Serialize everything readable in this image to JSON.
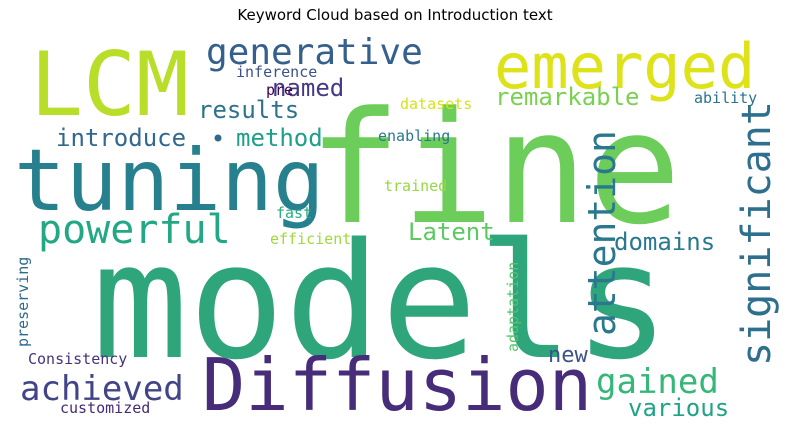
{
  "title": "Keyword Cloud based on Introduction text",
  "chart_data": {
    "type": "wordcloud",
    "title": "Keyword Cloud based on Introduction text",
    "words": [
      {
        "text": "models",
        "color": "#2ea57b",
        "rotate": false
      },
      {
        "text": "fine",
        "color": "#6ccd5a",
        "rotate": false
      },
      {
        "text": "tuning",
        "color": "#27808e",
        "rotate": false
      },
      {
        "text": "LCM",
        "color": "#b8de29",
        "rotate": false
      },
      {
        "text": "Diffusion",
        "color": "#472c7a",
        "rotate": false
      },
      {
        "text": "emerged",
        "color": "#dde318",
        "rotate": false
      },
      {
        "text": "significant",
        "color": "#2e6f8e",
        "rotate": true
      },
      {
        "text": "attention",
        "color": "#2a788e",
        "rotate": true
      },
      {
        "text": "powerful",
        "color": "#22a884",
        "rotate": false
      },
      {
        "text": "generative",
        "color": "#355f8d",
        "rotate": false
      },
      {
        "text": "achieved",
        "color": "#414487",
        "rotate": false
      },
      {
        "text": "gained",
        "color": "#35b779",
        "rotate": false
      },
      {
        "text": "remarkable",
        "color": "#7ad151",
        "rotate": false
      },
      {
        "text": "results",
        "color": "#2c728e",
        "rotate": false
      },
      {
        "text": "introduce",
        "color": "#31688e",
        "rotate": false
      },
      {
        "text": "method",
        "color": "#1f9e89",
        "rotate": false
      },
      {
        "text": "named",
        "color": "#443a83",
        "rotate": false
      },
      {
        "text": "domains",
        "color": "#2a788e",
        "rotate": false
      },
      {
        "text": "Latent",
        "color": "#5ec962",
        "rotate": false
      },
      {
        "text": "various",
        "color": "#20a386",
        "rotate": false
      },
      {
        "text": "new",
        "color": "#3b528b",
        "rotate": false
      },
      {
        "text": "inference",
        "color": "#3b528b",
        "rotate": false
      },
      {
        "text": "pre",
        "color": "#440154",
        "rotate": false
      },
      {
        "text": "datasets",
        "color": "#d8e219",
        "rotate": false
      },
      {
        "text": "ability",
        "color": "#2c728e",
        "rotate": false
      },
      {
        "text": "enabling",
        "color": "#2a788e",
        "rotate": false
      },
      {
        "text": "trained",
        "color": "#95d840",
        "rotate": false
      },
      {
        "text": "fast",
        "color": "#27ad81",
        "rotate": false
      },
      {
        "text": "efficient",
        "color": "#a0da39",
        "rotate": false
      },
      {
        "text": "preserving",
        "color": "#31688e",
        "rotate": true
      },
      {
        "text": "Consistency",
        "color": "#46337e",
        "rotate": false
      },
      {
        "text": "customized",
        "color": "#482878",
        "rotate": false
      },
      {
        "text": "adaptation",
        "color": "#52c569",
        "rotate": true
      }
    ]
  }
}
